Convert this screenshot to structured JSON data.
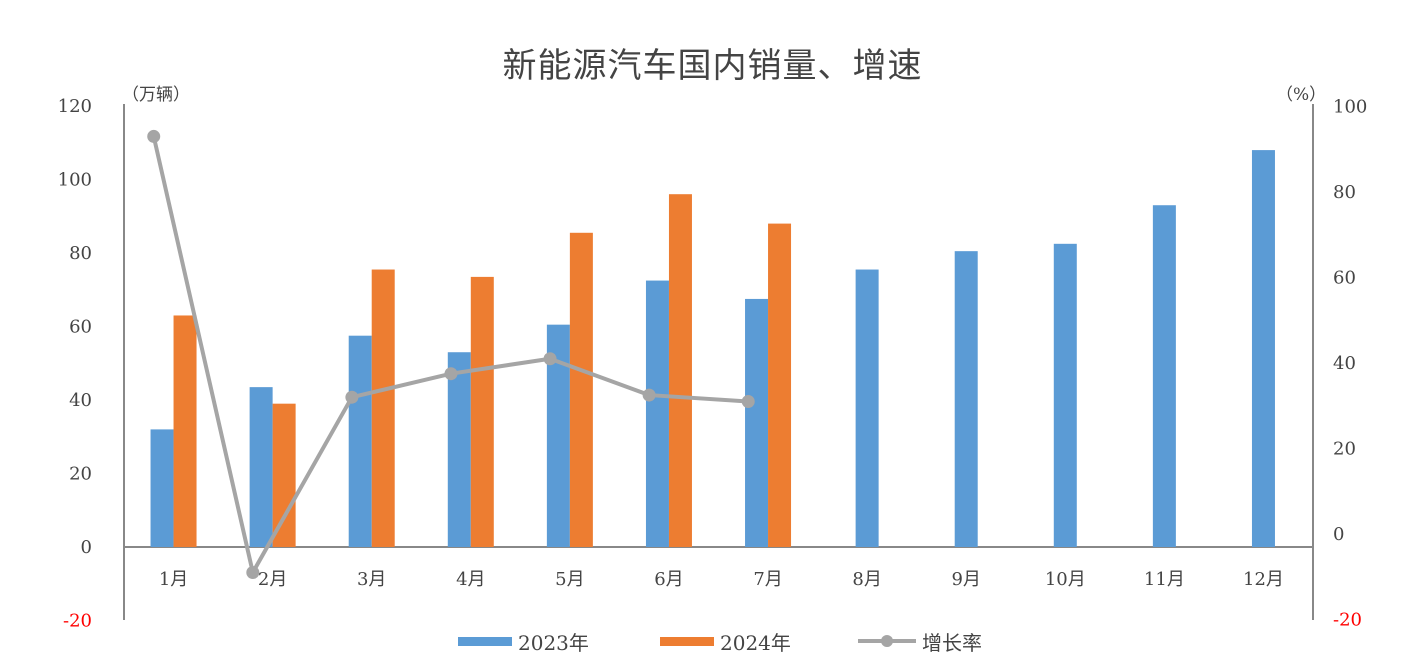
{
  "chart_data": {
    "type": "bar",
    "title": "新能源汽车国内销量、增速",
    "left_axis_unit": "（万辆）",
    "right_axis_unit": "（%）",
    "categories": [
      "1月",
      "2月",
      "3月",
      "4月",
      "5月",
      "6月",
      "7月",
      "8月",
      "9月",
      "10月",
      "11月",
      "12月"
    ],
    "left_ylim": [
      -20,
      120
    ],
    "left_ticks": [
      "-20",
      "0",
      "20",
      "40",
      "60",
      "80",
      "100",
      "120"
    ],
    "right_ylim": [
      -20,
      100
    ],
    "right_ticks": [
      "-20",
      "0",
      "20",
      "40",
      "60",
      "80",
      "100"
    ],
    "series": [
      {
        "name": "2023年",
        "kind": "bar",
        "axis": "left",
        "color": "#5B9BD5",
        "values": [
          32,
          43.5,
          57.5,
          53,
          60.5,
          72.5,
          67.5,
          75.5,
          80.5,
          82.5,
          93,
          108
        ]
      },
      {
        "name": "2024年",
        "kind": "bar",
        "axis": "left",
        "color": "#ED7D31",
        "values": [
          63,
          39,
          75.5,
          73.5,
          85.5,
          96,
          88,
          null,
          null,
          null,
          null,
          null
        ]
      },
      {
        "name": "增长率",
        "kind": "line",
        "axis": "right",
        "color": "#A5A5A5",
        "values": [
          93,
          -9,
          32,
          37.5,
          41,
          32.5,
          31,
          null,
          null,
          null,
          null,
          null
        ]
      }
    ],
    "negative_tick_color": "#FF0000",
    "grid": false,
    "legend_position": "bottom"
  }
}
